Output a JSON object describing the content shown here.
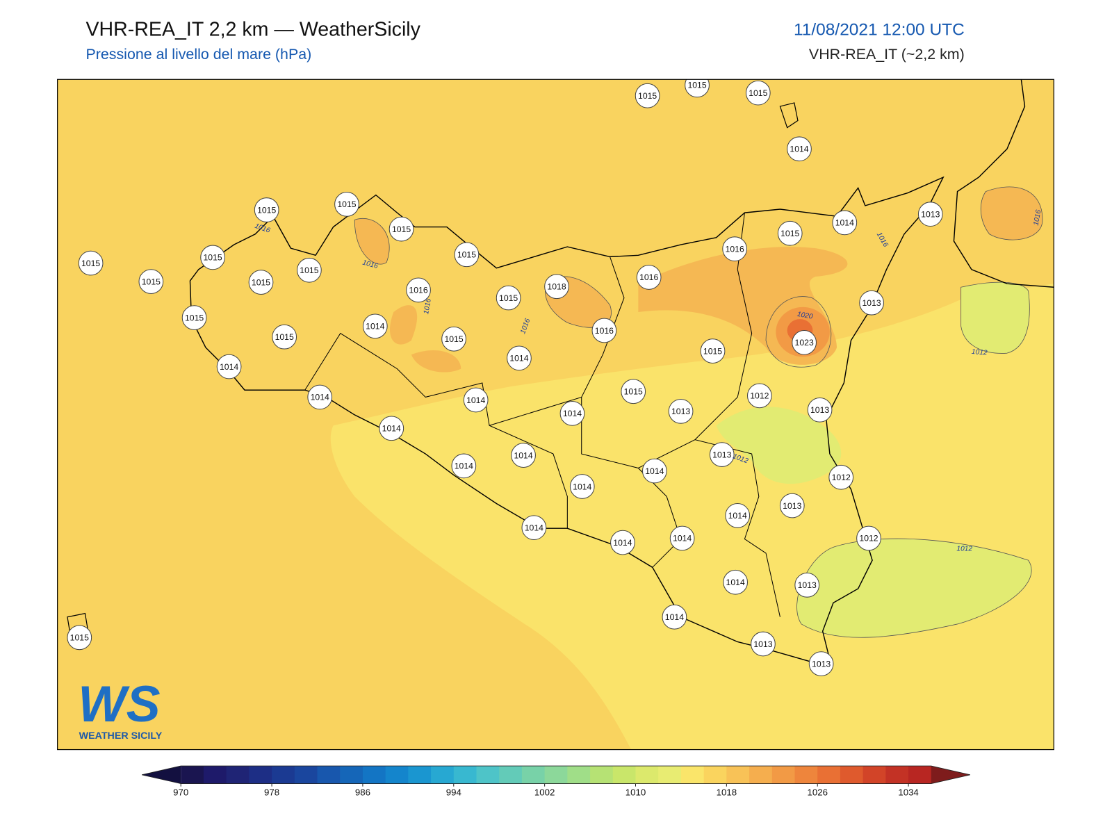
{
  "header": {
    "title": "VHR-REA_IT 2,2 km — WeatherSicily",
    "subtitle": "Pressione al livello del mare (hPa)",
    "datetime": "11/08/2021 12:00 UTC",
    "model": "VHR-REA_IT (~2,2 km)"
  },
  "map": {
    "stations": [
      1015,
      1015,
      1015,
      1014,
      1015,
      1015,
      1015,
      1015,
      1015,
      1015,
      1015,
      1015,
      1015,
      1016,
      1018,
      1015,
      1015,
      1015,
      1014,
      1015,
      1014,
      1016,
      1016,
      1016,
      1015,
      1014,
      1013,
      1013,
      1023,
      1015,
      1014,
      1014,
      1014,
      1015,
      1014,
      1013,
      1012,
      1013,
      1014,
      1014,
      1014,
      1013,
      1014,
      1014,
      1012,
      1013,
      1014,
      1014,
      1014,
      1014,
      1012,
      1014,
      1013,
      1014,
      1013,
      1013,
      1015
    ],
    "contour_labels": [
      "1016",
      "1016",
      "1016",
      "1016",
      "1020",
      "1016",
      "1016",
      "1012",
      "1012",
      "1012"
    ],
    "logo": {
      "mark": "WS",
      "name": "WEATHER SICILY"
    }
  },
  "colorbar": {
    "lim": [
      970,
      1036
    ],
    "ticks": [
      970,
      978,
      986,
      994,
      1002,
      1010,
      1018,
      1026,
      1034
    ],
    "colors": [
      "#1a1550",
      "#1e1a6a",
      "#1f2475",
      "#1d2e85",
      "#1b3a92",
      "#1a469e",
      "#1857ad",
      "#1566b8",
      "#1375c4",
      "#1485cc",
      "#1a96d0",
      "#27a8d2",
      "#38b8d0",
      "#4ec4c8",
      "#63cbb8",
      "#78d2a8",
      "#8cd89a",
      "#a0de88",
      "#b6e274",
      "#c9e66a",
      "#dce96c",
      "#e8ec72",
      "#fae56a",
      "#fad45e",
      "#f8c257",
      "#f5ae4e",
      "#f29a45",
      "#ee853c",
      "#e97034",
      "#df5a2d",
      "#d24428",
      "#c33225",
      "#b82622"
    ],
    "under_color": "#131040",
    "over_color": "#7e1c1c"
  }
}
